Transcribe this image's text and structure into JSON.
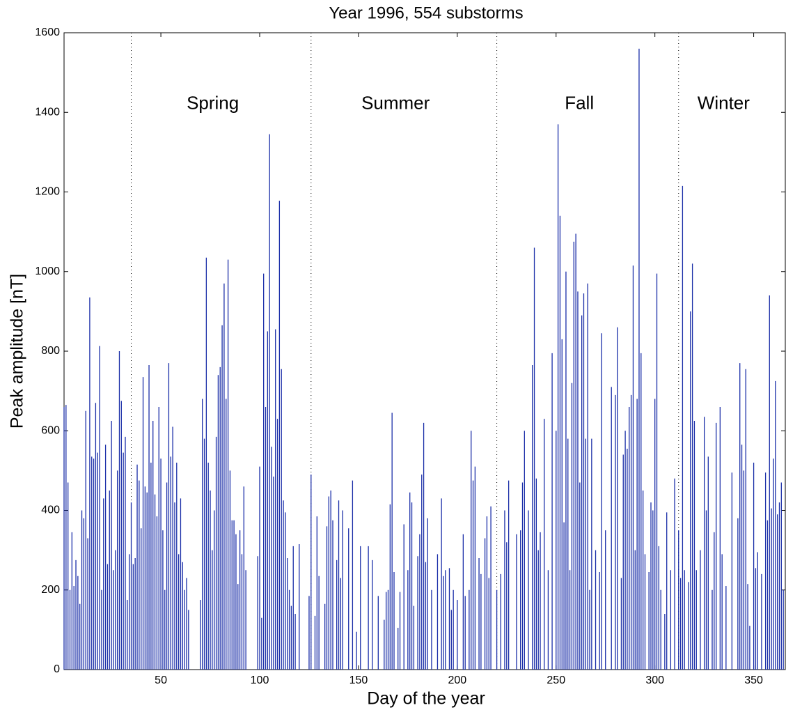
{
  "chart_data": {
    "type": "stem",
    "title": "Year 1996, 554 substorms",
    "x_label": "Day of the year",
    "y_label": "Peak amplitude [nT]",
    "color": "#1a2ea8",
    "xlim": [
      1,
      366
    ],
    "ylim": [
      0,
      1600
    ],
    "xticks": [
      50,
      100,
      150,
      200,
      250,
      300,
      350
    ],
    "yticks": [
      0,
      200,
      400,
      600,
      800,
      1000,
      1200,
      1400,
      1600
    ],
    "season_boundaries": [
      35,
      126,
      220,
      312
    ],
    "seasons": [
      "Spring",
      "Summer",
      "Fall",
      "Winter"
    ],
    "x": [
      1,
      2,
      3,
      4,
      5,
      6,
      7,
      8,
      9,
      10,
      11,
      12,
      13,
      14,
      15,
      16,
      17,
      18,
      19,
      20,
      21,
      22,
      23,
      24,
      25,
      26,
      27,
      28,
      29,
      30,
      31,
      32,
      33,
      34,
      35,
      36,
      37,
      38,
      39,
      40,
      41,
      42,
      43,
      44,
      45,
      46,
      47,
      48,
      49,
      50,
      51,
      52,
      53,
      54,
      55,
      56,
      57,
      58,
      59,
      60,
      61,
      62,
      63,
      64,
      70,
      71,
      72,
      73,
      74,
      75,
      76,
      77,
      78,
      79,
      80,
      81,
      82,
      83,
      84,
      85,
      86,
      87,
      88,
      89,
      90,
      91,
      92,
      93,
      99,
      100,
      101,
      102,
      103,
      104,
      105,
      106,
      107,
      108,
      109,
      110,
      111,
      112,
      113,
      114,
      115,
      116,
      117,
      118,
      120,
      125,
      126,
      128,
      129,
      130,
      133,
      134,
      135,
      136,
      137,
      139,
      140,
      141,
      142,
      145,
      147,
      149,
      151,
      155,
      157,
      160,
      163,
      164,
      165,
      166,
      167,
      168,
      170,
      171,
      173,
      175,
      176,
      177,
      178,
      180,
      181,
      182,
      183,
      184,
      185,
      187,
      190,
      192,
      193,
      194,
      196,
      197,
      198,
      200,
      203,
      204,
      206,
      207,
      208,
      209,
      211,
      212,
      214,
      215,
      216,
      217,
      220,
      222,
      224,
      225,
      226,
      230,
      232,
      233,
      234,
      236,
      238,
      239,
      240,
      241,
      242,
      244,
      246,
      248,
      250,
      251,
      252,
      253,
      254,
      255,
      256,
      257,
      258,
      259,
      260,
      261,
      262,
      263,
      264,
      265,
      266,
      267,
      268,
      270,
      272,
      273,
      275,
      278,
      280,
      281,
      283,
      284,
      285,
      286,
      287,
      288,
      289,
      290,
      291,
      292,
      293,
      294,
      295,
      297,
      298,
      299,
      300,
      301,
      302,
      303,
      305,
      306,
      308,
      310,
      312,
      313,
      314,
      315,
      317,
      318,
      319,
      320,
      321,
      323,
      325,
      326,
      327,
      329,
      330,
      331,
      333,
      334,
      336,
      339,
      342,
      343,
      344,
      345,
      346,
      347,
      348,
      350,
      351,
      352,
      354,
      356,
      357,
      358,
      359,
      360,
      361,
      362,
      363,
      364,
      365
    ],
    "values": [
      660,
      665,
      470,
      200,
      345,
      210,
      275,
      235,
      165,
      400,
      380,
      650,
      330,
      935,
      535,
      530,
      670,
      545,
      813,
      200,
      430,
      565,
      265,
      450,
      625,
      250,
      300,
      500,
      800,
      675,
      545,
      585,
      175,
      290,
      420,
      265,
      280,
      515,
      475,
      355,
      735,
      460,
      445,
      765,
      520,
      625,
      440,
      385,
      660,
      530,
      350,
      200,
      470,
      770,
      535,
      610,
      420,
      520,
      290,
      430,
      270,
      200,
      230,
      150,
      175,
      680,
      580,
      1035,
      520,
      450,
      300,
      400,
      585,
      740,
      760,
      865,
      970,
      680,
      1030,
      500,
      375,
      375,
      340,
      215,
      350,
      290,
      460,
      250,
      285,
      510,
      130,
      995,
      660,
      850,
      1345,
      560,
      485,
      855,
      630,
      1178,
      755,
      425,
      395,
      280,
      200,
      160,
      310,
      140,
      315,
      185,
      490,
      135,
      385,
      235,
      165,
      360,
      435,
      450,
      375,
      275,
      425,
      230,
      400,
      355,
      475,
      95,
      310,
      310,
      275,
      185,
      125,
      195,
      200,
      415,
      645,
      245,
      105,
      195,
      365,
      250,
      445,
      420,
      160,
      285,
      340,
      490,
      620,
      270,
      380,
      200,
      290,
      430,
      235,
      250,
      255,
      150,
      200,
      175,
      340,
      185,
      200,
      600,
      475,
      510,
      280,
      240,
      330,
      385,
      230,
      410,
      200,
      240,
      400,
      320,
      475,
      340,
      350,
      470,
      600,
      400,
      765,
      1060,
      480,
      300,
      345,
      630,
      250,
      795,
      600,
      1370,
      1140,
      830,
      370,
      1000,
      580,
      250,
      720,
      1075,
      1095,
      950,
      470,
      890,
      945,
      580,
      970,
      200,
      580,
      300,
      245,
      845,
      350,
      710,
      690,
      860,
      230,
      540,
      600,
      555,
      660,
      690,
      1015,
      300,
      680,
      1560,
      795,
      450,
      290,
      245,
      420,
      400,
      680,
      995,
      310,
      200,
      140,
      395,
      250,
      480,
      350,
      230,
      1215,
      250,
      220,
      900,
      1020,
      625,
      250,
      300,
      635,
      400,
      535,
      200,
      345,
      620,
      660,
      290,
      210,
      495,
      380,
      770,
      565,
      500,
      755,
      215,
      110,
      520,
      255,
      295,
      240,
      495,
      375,
      940,
      405,
      530,
      725,
      390,
      420,
      470,
      200
    ]
  }
}
